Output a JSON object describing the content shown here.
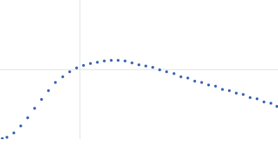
{
  "chart_data": {
    "type": "scatter",
    "color": "#3a66b5",
    "grid": true,
    "xlim": [
      0,
      6.024
    ],
    "ylim": [
      0,
      2.208
    ],
    "xticks": [
      1.732
    ],
    "yticks": [
      1.104
    ],
    "x": [
      0.05,
      0.15,
      0.3,
      0.45,
      0.6,
      0.75,
      0.9,
      1.05,
      1.2,
      1.36,
      1.51,
      1.66,
      1.81,
      1.96,
      2.11,
      2.26,
      2.41,
      2.56,
      2.71,
      2.86,
      3.01,
      3.16,
      3.31,
      3.46,
      3.61,
      3.77,
      3.92,
      4.07,
      4.22,
      4.37,
      4.52,
      4.67,
      4.82,
      4.97,
      5.12,
      5.27,
      5.42,
      5.57,
      5.72,
      5.87,
      6.0
    ],
    "values": [
      0.01,
      0.03,
      0.1,
      0.21,
      0.34,
      0.49,
      0.63,
      0.77,
      0.9,
      0.99,
      1.07,
      1.13,
      1.17,
      1.2,
      1.22,
      1.24,
      1.25,
      1.25,
      1.24,
      1.21,
      1.18,
      1.16,
      1.14,
      1.1,
      1.07,
      1.04,
      0.99,
      0.97,
      0.92,
      0.9,
      0.86,
      0.84,
      0.79,
      0.77,
      0.73,
      0.71,
      0.66,
      0.64,
      0.59,
      0.57,
      0.52
    ]
  }
}
